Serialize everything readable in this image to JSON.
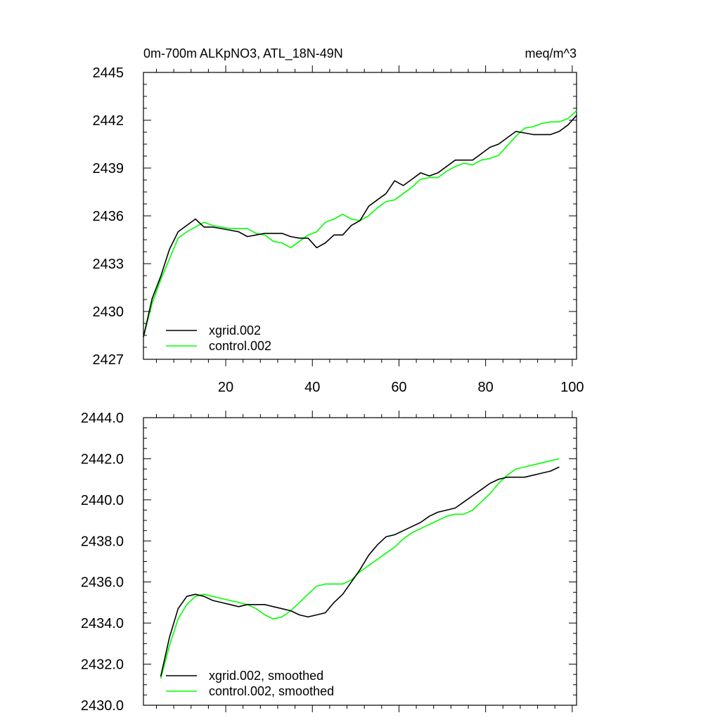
{
  "chart_data": [
    {
      "type": "line",
      "title_left": "0m-700m ALKpNO3, ATL_18N-49N",
      "title_right": "meq/m^3",
      "xlim": [
        1,
        101
      ],
      "ylim": [
        2427,
        2445
      ],
      "x_ticks": [
        20,
        40,
        60,
        80,
        100
      ],
      "x_tick_labels": [
        "20",
        "40",
        "60",
        "80",
        "100"
      ],
      "y_ticks": [
        2427,
        2430,
        2433,
        2436,
        2439,
        2442,
        2445
      ],
      "y_tick_labels": [
        "2427",
        "2430",
        "2433",
        "2436",
        "2439",
        "2442",
        "2445"
      ],
      "series": [
        {
          "name": "xgrid.002",
          "color": "#000000",
          "x": [
            1,
            3,
            5,
            7,
            9,
            11,
            13,
            15,
            17,
            19,
            21,
            23,
            25,
            27,
            29,
            31,
            33,
            35,
            37,
            39,
            41,
            43,
            45,
            47,
            49,
            51,
            53,
            55,
            57,
            59,
            61,
            63,
            65,
            67,
            69,
            71,
            73,
            75,
            77,
            79,
            81,
            83,
            85,
            87,
            89,
            91,
            93,
            95,
            97,
            99,
            101
          ],
          "values": [
            2428.4,
            2430.8,
            2432.2,
            2433.9,
            2435.0,
            2435.4,
            2435.8,
            2435.3,
            2435.3,
            2435.2,
            2435.1,
            2435.0,
            2434.7,
            2434.8,
            2434.9,
            2434.9,
            2434.9,
            2434.7,
            2434.6,
            2434.6,
            2434.0,
            2434.3,
            2434.8,
            2434.8,
            2435.4,
            2435.7,
            2436.6,
            2437.0,
            2437.4,
            2438.2,
            2437.9,
            2438.3,
            2438.7,
            2438.5,
            2438.7,
            2439.1,
            2439.5,
            2439.5,
            2439.5,
            2439.9,
            2440.3,
            2440.5,
            2440.9,
            2441.3,
            2441.2,
            2441.1,
            2441.1,
            2441.1,
            2441.3,
            2441.7,
            2442.3
          ]
        },
        {
          "name": "control.002",
          "color": "#00ff00",
          "x": [
            1,
            3,
            5,
            7,
            9,
            11,
            13,
            15,
            17,
            19,
            21,
            23,
            25,
            27,
            29,
            31,
            33,
            35,
            37,
            39,
            41,
            43,
            45,
            47,
            49,
            51,
            53,
            55,
            57,
            59,
            61,
            63,
            65,
            67,
            69,
            71,
            73,
            75,
            77,
            79,
            81,
            83,
            85,
            87,
            89,
            91,
            93,
            95,
            97,
            99,
            101
          ],
          "values": [
            2428.4,
            2430.5,
            2432.0,
            2433.3,
            2434.6,
            2435.0,
            2435.3,
            2435.6,
            2435.4,
            2435.3,
            2435.2,
            2435.2,
            2435.2,
            2434.9,
            2434.8,
            2434.4,
            2434.3,
            2434.0,
            2434.4,
            2434.8,
            2435.0,
            2435.6,
            2435.8,
            2436.1,
            2435.8,
            2435.7,
            2436.0,
            2436.5,
            2436.9,
            2437.0,
            2437.4,
            2437.8,
            2438.3,
            2438.4,
            2438.4,
            2438.8,
            2439.1,
            2439.3,
            2439.2,
            2439.5,
            2439.6,
            2439.8,
            2440.4,
            2441.0,
            2441.5,
            2441.6,
            2441.8,
            2441.9,
            2441.9,
            2442.1,
            2442.6
          ]
        }
      ],
      "legend": [
        "xgrid.002",
        "control.002"
      ],
      "legend_position": "bottom-left",
      "grid": false
    },
    {
      "type": "line",
      "xlim": [
        1,
        101
      ],
      "ylim": [
        2430,
        2444
      ],
      "x_ticks": [
        20,
        40,
        60,
        80,
        100
      ],
      "y_ticks": [
        2430,
        2432,
        2434,
        2436,
        2438,
        2440,
        2442,
        2444
      ],
      "y_tick_labels": [
        "2430.0",
        "2432.0",
        "2434.0",
        "2436.0",
        "2438.0",
        "2440.0",
        "2442.0",
        "2444.0"
      ],
      "series": [
        {
          "name": "xgrid.002, smoothed",
          "color": "#000000",
          "x": [
            5,
            7,
            9,
            11,
            13,
            15,
            17,
            19,
            21,
            23,
            25,
            27,
            29,
            31,
            33,
            35,
            37,
            39,
            41,
            43,
            45,
            47,
            49,
            51,
            53,
            55,
            57,
            59,
            61,
            63,
            65,
            67,
            69,
            71,
            73,
            75,
            77,
            79,
            81,
            83,
            85,
            87,
            89,
            91,
            93,
            95,
            97
          ],
          "values": [
            2431.4,
            2433.3,
            2434.7,
            2435.3,
            2435.4,
            2435.3,
            2435.1,
            2435.0,
            2434.9,
            2434.8,
            2434.9,
            2434.9,
            2434.9,
            2434.8,
            2434.7,
            2434.6,
            2434.4,
            2434.3,
            2434.4,
            2434.5,
            2435.0,
            2435.4,
            2436.0,
            2436.6,
            2437.3,
            2437.8,
            2438.2,
            2438.3,
            2438.5,
            2438.7,
            2438.9,
            2439.2,
            2439.4,
            2439.5,
            2439.6,
            2439.9,
            2440.2,
            2440.5,
            2440.8,
            2441.0,
            2441.1,
            2441.1,
            2441.1,
            2441.2,
            2441.3,
            2441.4,
            2441.6
          ]
        },
        {
          "name": "control.002, smoothed",
          "color": "#00ff00",
          "x": [
            5,
            7,
            9,
            11,
            13,
            15,
            17,
            19,
            21,
            23,
            25,
            27,
            29,
            31,
            33,
            35,
            37,
            39,
            41,
            43,
            45,
            47,
            49,
            51,
            53,
            55,
            57,
            59,
            61,
            63,
            65,
            67,
            69,
            71,
            73,
            75,
            77,
            79,
            81,
            83,
            85,
            87,
            89,
            91,
            93,
            95,
            97
          ],
          "values": [
            2431.3,
            2432.9,
            2434.2,
            2434.9,
            2435.3,
            2435.4,
            2435.3,
            2435.2,
            2435.1,
            2435.0,
            2434.9,
            2434.7,
            2434.4,
            2434.2,
            2434.3,
            2434.6,
            2435.0,
            2435.4,
            2435.8,
            2435.9,
            2435.9,
            2435.9,
            2436.1,
            2436.5,
            2436.8,
            2437.1,
            2437.4,
            2437.7,
            2438.1,
            2438.4,
            2438.6,
            2438.8,
            2439.0,
            2439.2,
            2439.3,
            2439.3,
            2439.5,
            2439.9,
            2440.3,
            2440.8,
            2441.2,
            2441.5,
            2441.6,
            2441.7,
            2441.8,
            2441.9,
            2442.0
          ]
        }
      ],
      "legend": [
        "xgrid.002, smoothed",
        "control.002, smoothed"
      ],
      "legend_position": "bottom-left",
      "grid": false
    }
  ]
}
